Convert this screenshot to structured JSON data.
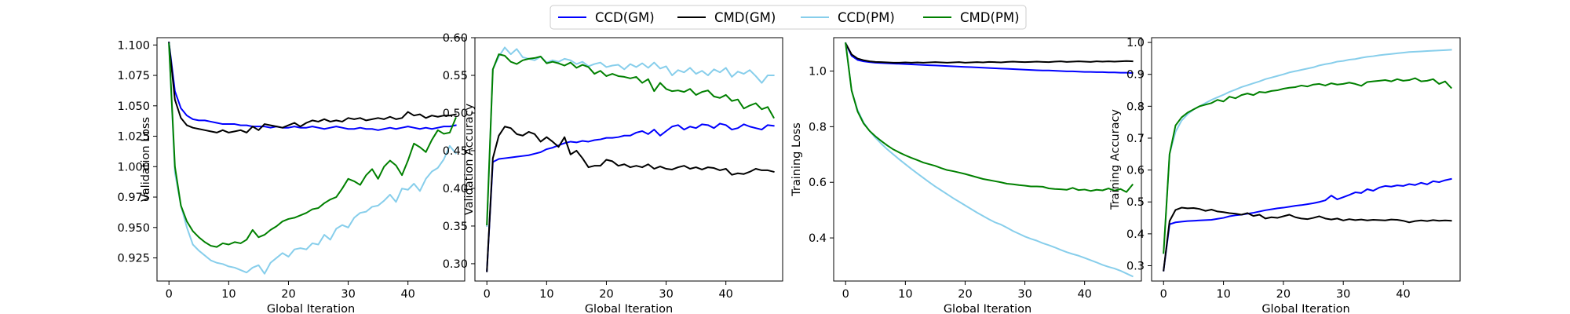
{
  "legend": {
    "location": "top-center",
    "entries": [
      {
        "label": "CCD(GM)",
        "color": "#0000ff"
      },
      {
        "label": "CMD(GM)",
        "color": "#000000"
      },
      {
        "label": "CCD(PM)",
        "color": "#87ceeb"
      },
      {
        "label": "CMD(PM)",
        "color": "#008000"
      }
    ]
  },
  "chart_data": [
    {
      "type": "line",
      "title": "",
      "xlabel": "Global Iteration",
      "ylabel": "Validation Loss",
      "xlim": [
        -2,
        49.5
      ],
      "ylim": [
        0.906,
        1.106
      ],
      "xticks": [
        0,
        10,
        20,
        30,
        40
      ],
      "yticks": [
        0.925,
        0.95,
        0.975,
        1.0,
        1.025,
        1.05,
        1.075,
        1.1
      ],
      "ytick_labels": [
        "0.925",
        "0.950",
        "0.975",
        "1.000",
        "1.025",
        "1.050",
        "1.075",
        "1.100"
      ],
      "grid": false,
      "series": [
        {
          "name": "CCD(GM)",
          "color": "#0000ff",
          "values": [
            1.102,
            1.062,
            1.048,
            1.042,
            1.039,
            1.038,
            1.038,
            1.037,
            1.036,
            1.035,
            1.035,
            1.035,
            1.034,
            1.034,
            1.033,
            1.033,
            1.033,
            1.032,
            1.033,
            1.032,
            1.032,
            1.033,
            1.032,
            1.032,
            1.033,
            1.032,
            1.031,
            1.032,
            1.033,
            1.032,
            1.031,
            1.031,
            1.032,
            1.031,
            1.031,
            1.03,
            1.031,
            1.032,
            1.031,
            1.032,
            1.033,
            1.032,
            1.031,
            1.032,
            1.031,
            1.032,
            1.033,
            1.033,
            1.034
          ]
        },
        {
          "name": "CMD(GM)",
          "color": "#000000",
          "values": [
            1.102,
            1.055,
            1.04,
            1.034,
            1.032,
            1.031,
            1.03,
            1.029,
            1.028,
            1.03,
            1.028,
            1.029,
            1.03,
            1.028,
            1.033,
            1.03,
            1.035,
            1.034,
            1.033,
            1.032,
            1.034,
            1.036,
            1.033,
            1.036,
            1.038,
            1.037,
            1.039,
            1.037,
            1.038,
            1.037,
            1.04,
            1.039,
            1.04,
            1.038,
            1.039,
            1.04,
            1.039,
            1.041,
            1.039,
            1.04,
            1.045,
            1.042,
            1.043,
            1.04,
            1.042,
            1.041,
            1.042,
            1.042,
            1.043
          ]
        },
        {
          "name": "CCD(PM)",
          "color": "#87ceeb",
          "values": [
            1.101,
            0.995,
            0.968,
            0.95,
            0.936,
            0.931,
            0.927,
            0.923,
            0.921,
            0.92,
            0.918,
            0.917,
            0.915,
            0.913,
            0.917,
            0.919,
            0.912,
            0.921,
            0.925,
            0.929,
            0.926,
            0.932,
            0.933,
            0.932,
            0.937,
            0.936,
            0.944,
            0.94,
            0.949,
            0.952,
            0.95,
            0.958,
            0.962,
            0.963,
            0.967,
            0.968,
            0.972,
            0.977,
            0.971,
            0.982,
            0.981,
            0.986,
            0.98,
            0.99,
            0.996,
            0.999,
            1.006,
            1.017,
            1.011
          ]
        },
        {
          "name": "CMD(PM)",
          "color": "#008000",
          "values": [
            1.101,
            1.0,
            0.968,
            0.955,
            0.947,
            0.942,
            0.938,
            0.935,
            0.934,
            0.937,
            0.936,
            0.938,
            0.937,
            0.94,
            0.948,
            0.942,
            0.944,
            0.948,
            0.951,
            0.955,
            0.957,
            0.958,
            0.96,
            0.962,
            0.965,
            0.966,
            0.97,
            0.973,
            0.975,
            0.982,
            0.99,
            0.988,
            0.985,
            0.993,
            0.998,
            0.99,
            1.0,
            1.005,
            1.001,
            0.993,
            1.005,
            1.019,
            1.016,
            1.012,
            1.022,
            1.03,
            1.027,
            1.028,
            1.04
          ]
        }
      ]
    },
    {
      "type": "line",
      "title": "",
      "xlabel": "Global Iteration",
      "ylabel": "Validation Accuracy",
      "xlim": [
        -2,
        49.5
      ],
      "ylim": [
        0.277,
        0.6
      ],
      "xticks": [
        0,
        10,
        20,
        30,
        40
      ],
      "yticks": [
        0.3,
        0.35,
        0.4,
        0.45,
        0.5,
        0.55,
        0.6
      ],
      "ytick_labels": [
        "0.30",
        "0.35",
        "0.40",
        "0.45",
        "0.50",
        "0.55",
        "0.60"
      ],
      "grid": false,
      "series": [
        {
          "name": "CCD(GM)",
          "color": "#0000ff",
          "values": [
            0.29,
            0.435,
            0.439,
            0.44,
            0.441,
            0.442,
            0.443,
            0.444,
            0.446,
            0.448,
            0.452,
            0.454,
            0.457,
            0.46,
            0.462,
            0.461,
            0.463,
            0.462,
            0.464,
            0.465,
            0.467,
            0.467,
            0.468,
            0.47,
            0.47,
            0.474,
            0.476,
            0.472,
            0.478,
            0.47,
            0.476,
            0.482,
            0.484,
            0.478,
            0.482,
            0.48,
            0.485,
            0.484,
            0.48,
            0.486,
            0.484,
            0.478,
            0.48,
            0.485,
            0.482,
            0.48,
            0.478,
            0.484,
            0.483
          ]
        },
        {
          "name": "CMD(GM)",
          "color": "#000000",
          "values": [
            0.29,
            0.44,
            0.47,
            0.482,
            0.48,
            0.472,
            0.47,
            0.475,
            0.472,
            0.462,
            0.468,
            0.462,
            0.455,
            0.468,
            0.445,
            0.45,
            0.44,
            0.428,
            0.43,
            0.43,
            0.438,
            0.436,
            0.43,
            0.432,
            0.428,
            0.43,
            0.428,
            0.432,
            0.426,
            0.429,
            0.426,
            0.425,
            0.428,
            0.43,
            0.426,
            0.428,
            0.425,
            0.428,
            0.427,
            0.424,
            0.426,
            0.418,
            0.42,
            0.419,
            0.422,
            0.426,
            0.424,
            0.424,
            0.422
          ]
        },
        {
          "name": "CCD(PM)",
          "color": "#87ceeb",
          "values": [
            0.35,
            0.558,
            0.575,
            0.587,
            0.578,
            0.585,
            0.574,
            0.572,
            0.57,
            0.575,
            0.567,
            0.57,
            0.568,
            0.572,
            0.57,
            0.565,
            0.568,
            0.562,
            0.565,
            0.567,
            0.561,
            0.563,
            0.564,
            0.558,
            0.565,
            0.561,
            0.566,
            0.56,
            0.567,
            0.559,
            0.562,
            0.55,
            0.557,
            0.554,
            0.56,
            0.552,
            0.556,
            0.55,
            0.558,
            0.554,
            0.56,
            0.548,
            0.555,
            0.552,
            0.557,
            0.549,
            0.54,
            0.55,
            0.55
          ]
        },
        {
          "name": "CMD(PM)",
          "color": "#008000",
          "values": [
            0.352,
            0.558,
            0.578,
            0.576,
            0.568,
            0.565,
            0.57,
            0.572,
            0.573,
            0.575,
            0.566,
            0.568,
            0.566,
            0.563,
            0.567,
            0.56,
            0.564,
            0.561,
            0.552,
            0.556,
            0.549,
            0.552,
            0.549,
            0.548,
            0.546,
            0.548,
            0.54,
            0.545,
            0.529,
            0.54,
            0.532,
            0.529,
            0.53,
            0.528,
            0.532,
            0.524,
            0.528,
            0.53,
            0.522,
            0.52,
            0.524,
            0.516,
            0.518,
            0.506,
            0.51,
            0.513,
            0.505,
            0.508,
            0.494
          ]
        }
      ]
    },
    {
      "type": "line",
      "title": "",
      "xlabel": "Global Iteration",
      "ylabel": "Training Loss",
      "xlim": [
        -2,
        49.5
      ],
      "ylim": [
        0.245,
        1.12
      ],
      "xticks": [
        0,
        10,
        20,
        30,
        40
      ],
      "yticks": [
        0.4,
        0.6,
        0.8,
        1.0
      ],
      "ytick_labels": [
        "0.4",
        "0.6",
        "0.8",
        "1.0"
      ],
      "grid": false,
      "series": [
        {
          "name": "CCD(GM)",
          "color": "#0000ff",
          "values": [
            1.1,
            1.055,
            1.04,
            1.035,
            1.032,
            1.03,
            1.029,
            1.028,
            1.027,
            1.026,
            1.025,
            1.024,
            1.023,
            1.022,
            1.021,
            1.02,
            1.019,
            1.018,
            1.017,
            1.016,
            1.015,
            1.014,
            1.013,
            1.012,
            1.011,
            1.01,
            1.009,
            1.008,
            1.007,
            1.006,
            1.005,
            1.004,
            1.003,
            1.002,
            1.002,
            1.001,
            1.0,
            0.999,
            0.999,
            0.998,
            0.997,
            0.997,
            0.996,
            0.996,
            0.995,
            0.995,
            0.994,
            0.994,
            0.993
          ]
        },
        {
          "name": "CMD(GM)",
          "color": "#000000",
          "values": [
            1.1,
            1.06,
            1.045,
            1.039,
            1.035,
            1.033,
            1.032,
            1.031,
            1.03,
            1.03,
            1.031,
            1.03,
            1.031,
            1.03,
            1.031,
            1.032,
            1.031,
            1.03,
            1.031,
            1.032,
            1.03,
            1.031,
            1.032,
            1.031,
            1.033,
            1.032,
            1.031,
            1.033,
            1.034,
            1.033,
            1.032,
            1.033,
            1.034,
            1.033,
            1.032,
            1.034,
            1.035,
            1.033,
            1.034,
            1.035,
            1.034,
            1.033,
            1.035,
            1.034,
            1.035,
            1.034,
            1.035,
            1.036,
            1.035
          ]
        },
        {
          "name": "CCD(PM)",
          "color": "#87ceeb",
          "values": [
            1.1,
            0.93,
            0.86,
            0.815,
            0.785,
            0.76,
            0.738,
            0.718,
            0.7,
            0.682,
            0.665,
            0.648,
            0.632,
            0.616,
            0.6,
            0.585,
            0.571,
            0.557,
            0.543,
            0.53,
            0.517,
            0.504,
            0.491,
            0.479,
            0.467,
            0.456,
            0.448,
            0.437,
            0.425,
            0.415,
            0.405,
            0.397,
            0.39,
            0.381,
            0.374,
            0.366,
            0.357,
            0.349,
            0.342,
            0.336,
            0.328,
            0.32,
            0.312,
            0.303,
            0.296,
            0.29,
            0.282,
            0.272,
            0.262
          ]
        },
        {
          "name": "CMD(PM)",
          "color": "#008000",
          "values": [
            1.1,
            0.93,
            0.855,
            0.812,
            0.785,
            0.765,
            0.748,
            0.732,
            0.718,
            0.707,
            0.697,
            0.688,
            0.68,
            0.671,
            0.665,
            0.659,
            0.651,
            0.644,
            0.64,
            0.635,
            0.63,
            0.624,
            0.618,
            0.612,
            0.608,
            0.604,
            0.6,
            0.595,
            0.593,
            0.59,
            0.588,
            0.585,
            0.585,
            0.584,
            0.578,
            0.576,
            0.575,
            0.573,
            0.58,
            0.572,
            0.574,
            0.569,
            0.573,
            0.571,
            0.578,
            0.57,
            0.576,
            0.565,
            0.591
          ]
        }
      ]
    },
    {
      "type": "line",
      "title": "",
      "xlabel": "Global Iteration",
      "ylabel": "Training Accuracy",
      "xlim": [
        -2,
        49.5
      ],
      "ylim": [
        0.252,
        1.015
      ],
      "xticks": [
        0,
        10,
        20,
        30,
        40
      ],
      "yticks": [
        0.3,
        0.4,
        0.5,
        0.6,
        0.7,
        0.8,
        0.9,
        1.0
      ],
      "ytick_labels": [
        "0.3",
        "0.4",
        "0.5",
        "0.6",
        "0.7",
        "0.8",
        "0.9",
        "1.0"
      ],
      "grid": false,
      "series": [
        {
          "name": "CCD(GM)",
          "color": "#0000ff",
          "values": [
            0.285,
            0.43,
            0.436,
            0.438,
            0.44,
            0.441,
            0.442,
            0.443,
            0.444,
            0.447,
            0.45,
            0.455,
            0.458,
            0.46,
            0.463,
            0.466,
            0.47,
            0.474,
            0.477,
            0.48,
            0.482,
            0.485,
            0.488,
            0.49,
            0.493,
            0.496,
            0.5,
            0.505,
            0.52,
            0.508,
            0.515,
            0.522,
            0.53,
            0.528,
            0.54,
            0.535,
            0.545,
            0.55,
            0.548,
            0.552,
            0.55,
            0.556,
            0.553,
            0.56,
            0.555,
            0.565,
            0.562,
            0.568,
            0.572
          ]
        },
        {
          "name": "CMD(GM)",
          "color": "#000000",
          "values": [
            0.285,
            0.44,
            0.475,
            0.482,
            0.48,
            0.481,
            0.478,
            0.472,
            0.476,
            0.47,
            0.468,
            0.465,
            0.463,
            0.46,
            0.465,
            0.456,
            0.46,
            0.448,
            0.452,
            0.45,
            0.455,
            0.46,
            0.452,
            0.448,
            0.446,
            0.45,
            0.455,
            0.448,
            0.445,
            0.448,
            0.442,
            0.446,
            0.443,
            0.445,
            0.442,
            0.444,
            0.443,
            0.442,
            0.445,
            0.444,
            0.441,
            0.436,
            0.44,
            0.442,
            0.44,
            0.443,
            0.441,
            0.442,
            0.441
          ]
        },
        {
          "name": "CCD(PM)",
          "color": "#87ceeb",
          "values": [
            0.34,
            0.65,
            0.72,
            0.755,
            0.775,
            0.79,
            0.8,
            0.81,
            0.82,
            0.828,
            0.836,
            0.845,
            0.852,
            0.86,
            0.866,
            0.872,
            0.878,
            0.885,
            0.89,
            0.895,
            0.9,
            0.906,
            0.91,
            0.914,
            0.918,
            0.922,
            0.928,
            0.932,
            0.935,
            0.94,
            0.942,
            0.946,
            0.948,
            0.952,
            0.955,
            0.957,
            0.96,
            0.962,
            0.964,
            0.966,
            0.968,
            0.97,
            0.971,
            0.972,
            0.973,
            0.974,
            0.975,
            0.976,
            0.977
          ]
        },
        {
          "name": "CMD(PM)",
          "color": "#008000",
          "values": [
            0.34,
            0.65,
            0.74,
            0.765,
            0.78,
            0.79,
            0.8,
            0.805,
            0.81,
            0.82,
            0.815,
            0.83,
            0.825,
            0.835,
            0.84,
            0.835,
            0.845,
            0.843,
            0.848,
            0.85,
            0.855,
            0.858,
            0.86,
            0.865,
            0.862,
            0.868,
            0.87,
            0.865,
            0.872,
            0.868,
            0.87,
            0.874,
            0.87,
            0.864,
            0.876,
            0.878,
            0.88,
            0.882,
            0.878,
            0.885,
            0.88,
            0.882,
            0.888,
            0.878,
            0.88,
            0.885,
            0.87,
            0.878,
            0.858
          ]
        }
      ]
    }
  ]
}
